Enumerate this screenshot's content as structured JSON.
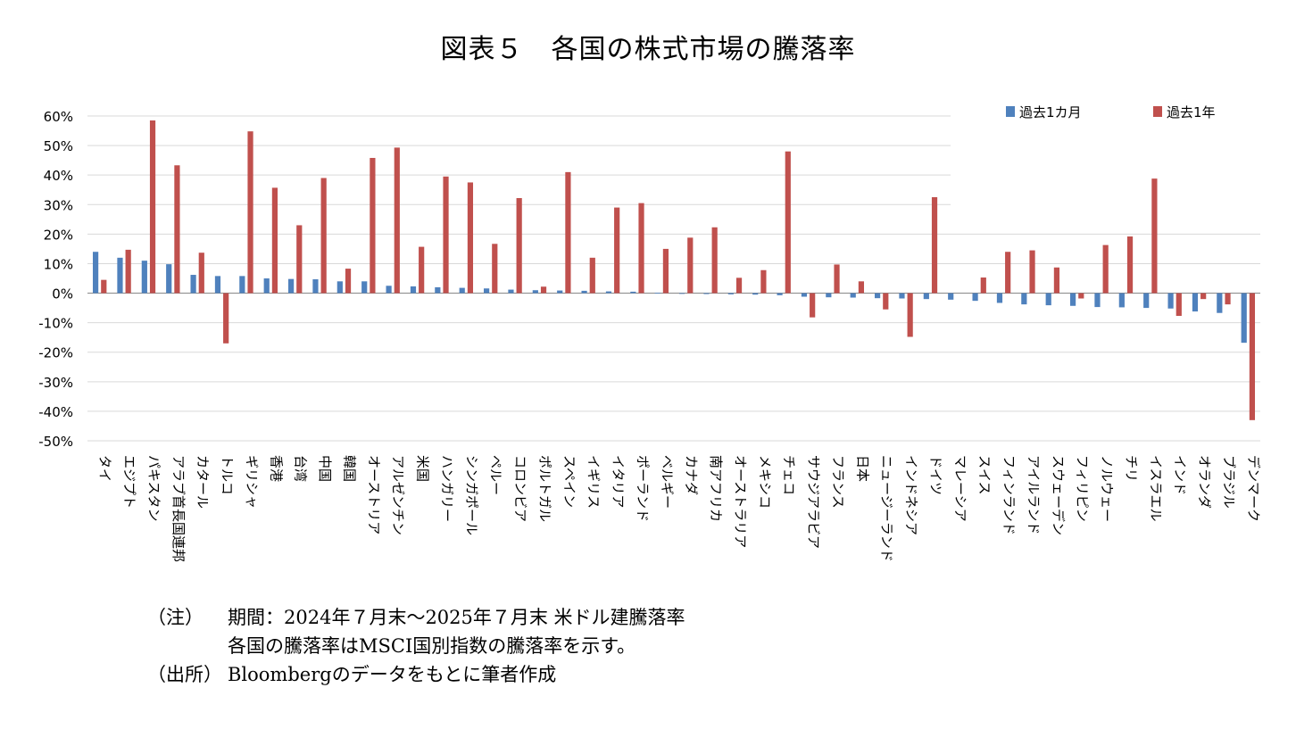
{
  "title": "図表５　各国の株式市場の騰落率",
  "chart_data": {
    "type": "bar",
    "title": "図表５　各国の株式市場の騰落率",
    "xlabel": "",
    "ylabel": "",
    "ylim": [
      -0.5,
      0.6
    ],
    "yticks": [
      "60%",
      "50%",
      "40%",
      "30%",
      "20%",
      "10%",
      "0%",
      "-10%",
      "-20%",
      "-30%",
      "-40%",
      "-50%"
    ],
    "grid": true,
    "legend_position": "top-right",
    "categories": [
      "タイ",
      "エジプト",
      "パキスタン",
      "アラブ首長国連邦",
      "カタール",
      "トルコ",
      "ギリシャ",
      "香港",
      "台湾",
      "中国",
      "韓国",
      "オーストリア",
      "アルゼンチン",
      "米国",
      "ハンガリー",
      "シンガポール",
      "ペルー",
      "コロンビア",
      "ポルトガル",
      "スペイン",
      "イギリス",
      "イタリア",
      "ポーランド",
      "ベルギー",
      "カナダ",
      "南アフリカ",
      "オーストラリア",
      "メキシコ",
      "チェコ",
      "サウジアラビア",
      "フランス",
      "日本",
      "ニュージーランド",
      "インドネシア",
      "ドイツ",
      "マレーシア",
      "スイス",
      "フィンランド",
      "アイルランド",
      "スウェーデン",
      "フィリピン",
      "ノルウェー",
      "チリ",
      "イスラエル",
      "インド",
      "オランダ",
      "ブラジル",
      "デンマーク"
    ],
    "series": [
      {
        "name": "過去1カ月",
        "color": "#4F81BD",
        "values": [
          0.14,
          0.12,
          0.11,
          0.098,
          0.062,
          0.058,
          0.058,
          0.05,
          0.048,
          0.047,
          0.04,
          0.04,
          0.025,
          0.023,
          0.02,
          0.018,
          0.016,
          0.012,
          0.01,
          0.009,
          0.008,
          0.006,
          0.005,
          0.001,
          -0.002,
          -0.003,
          -0.004,
          -0.005,
          -0.007,
          -0.012,
          -0.014,
          -0.015,
          -0.017,
          -0.018,
          -0.02,
          -0.022,
          -0.026,
          -0.033,
          -0.038,
          -0.041,
          -0.043,
          -0.047,
          -0.048,
          -0.05,
          -0.052,
          -0.062,
          -0.067,
          -0.168
        ]
      },
      {
        "name": "過去1年",
        "color": "#C0504D",
        "values": [
          0.045,
          0.147,
          0.585,
          0.433,
          0.137,
          -0.17,
          0.548,
          0.357,
          0.23,
          0.39,
          0.083,
          0.458,
          0.493,
          0.157,
          0.395,
          0.375,
          0.167,
          0.322,
          0.022,
          0.41,
          0.12,
          0.29,
          0.305,
          0.15,
          0.188,
          0.223,
          0.052,
          0.078,
          0.48,
          -0.082,
          0.097,
          0.04,
          -0.055,
          -0.148,
          0.325,
          0.0,
          0.053,
          0.14,
          0.145,
          0.087,
          -0.018,
          0.163,
          0.192,
          0.388,
          -0.077,
          -0.02,
          -0.038,
          -0.43
        ]
      }
    ]
  },
  "notes": [
    {
      "label": "（注）",
      "text": "期間：2024年７月末～2025年７月末 米ドル建騰落率"
    },
    {
      "label": "",
      "text": "各国の騰落率はMSCI国別指数の騰落率を示す。"
    },
    {
      "label": "（出所）",
      "text": "Bloombergのデータをもとに筆者作成"
    }
  ]
}
